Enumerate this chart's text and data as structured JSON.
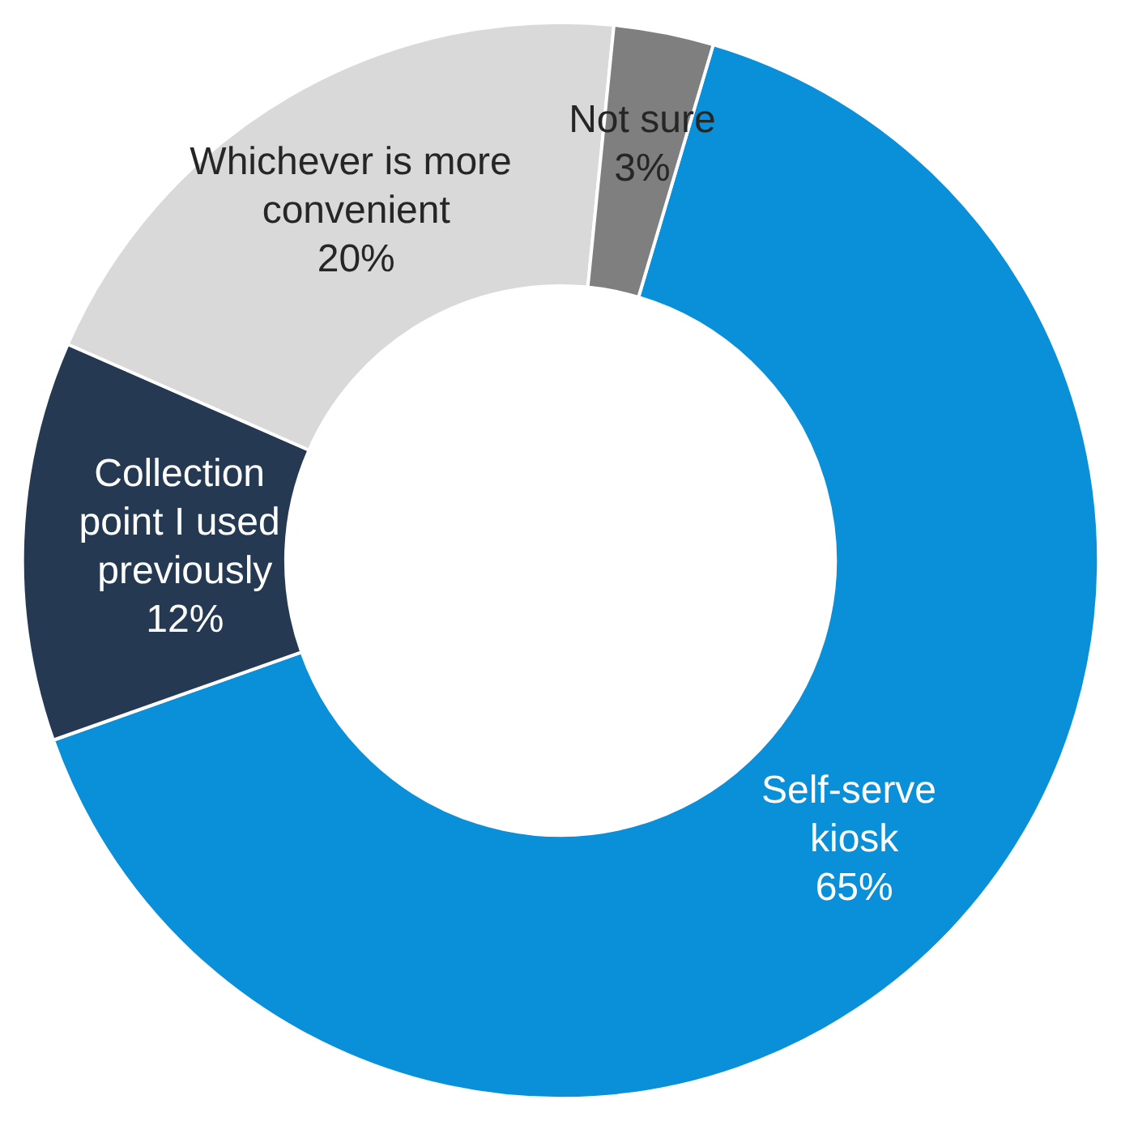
{
  "chart_data": {
    "type": "donut",
    "categories": [
      "Self-serve kiosk",
      "Collection point I used previously",
      "Whichever is more convenient",
      "Not sure"
    ],
    "values": [
      65,
      12,
      20,
      3
    ],
    "colors": [
      "#0a8fd9",
      "#253a52",
      "#d9d9d9",
      "#7f7f7f"
    ],
    "value_labels": [
      "65%",
      "12%",
      "20%",
      "3%"
    ],
    "legend": false
  }
}
